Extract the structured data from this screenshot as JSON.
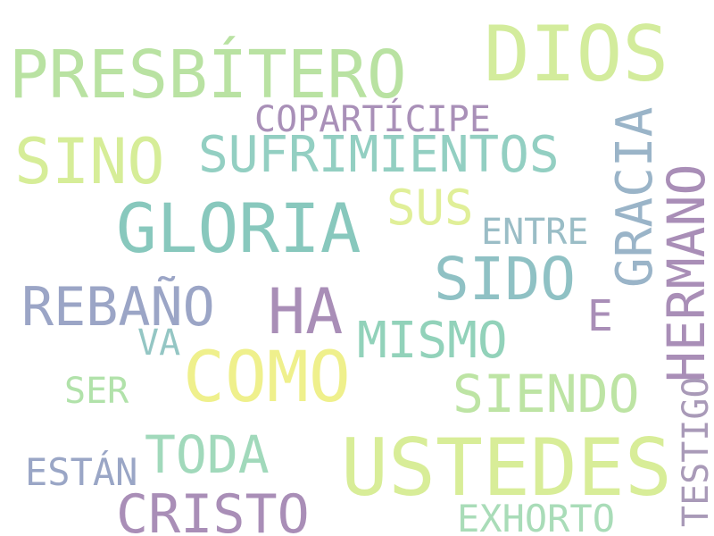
{
  "words": [
    {
      "key": "dios",
      "text": "DIOS",
      "color": "#d3ec9c"
    },
    {
      "key": "presbitero",
      "text": "PRESBÍTERO",
      "color": "#b9e2a2"
    },
    {
      "key": "copartícipe",
      "text": "COPARTÍCIPE",
      "color": "#a990b8"
    },
    {
      "key": "sino",
      "text": "SINO",
      "color": "#d6ed98"
    },
    {
      "key": "sufrimientos",
      "text": "SUFRIMIENTOS",
      "color": "#93cfc2"
    },
    {
      "key": "gloria",
      "text": "GLORIA",
      "color": "#88c8bd"
    },
    {
      "key": "sus",
      "text": "SUS",
      "color": "#e0ef98"
    },
    {
      "key": "entre",
      "text": "ENTRE",
      "color": "#9abdc6"
    },
    {
      "key": "sido",
      "text": "SIDO",
      "color": "#8fc1c4"
    },
    {
      "key": "rebano",
      "text": "REBAÑO",
      "color": "#9ba5c6"
    },
    {
      "key": "ha",
      "text": "HA",
      "color": "#a98eb7"
    },
    {
      "key": "e",
      "text": "E",
      "color": "#a98eb7"
    },
    {
      "key": "mismo",
      "text": "MISMO",
      "color": "#92d2ba"
    },
    {
      "key": "va",
      "text": "VA",
      "color": "#94c6c4"
    },
    {
      "key": "como",
      "text": "COMO",
      "color": "#eff08c"
    },
    {
      "key": "siendo",
      "text": "SIENDO",
      "color": "#bde4a4"
    },
    {
      "key": "ser",
      "text": "SER",
      "color": "#b1e2aa"
    },
    {
      "key": "toda",
      "text": "TODA",
      "color": "#a1d9bb"
    },
    {
      "key": "ustedes",
      "text": "USTEDES",
      "color": "#d8ed98"
    },
    {
      "key": "estan",
      "text": "ESTÁN",
      "color": "#9aa6c6"
    },
    {
      "key": "cristo",
      "text": "CRISTO",
      "color": "#a98eb7"
    },
    {
      "key": "exhorto",
      "text": "EXHORTO",
      "color": "#a9dcb8"
    },
    {
      "key": "gracia",
      "text": "GRACIA",
      "color": "#9ab4c8"
    },
    {
      "key": "hermano",
      "text": "HERMANO",
      "color": "#a98eb7"
    },
    {
      "key": "testigo",
      "text": "TESTIGO",
      "color": "#a99ab8"
    }
  ]
}
